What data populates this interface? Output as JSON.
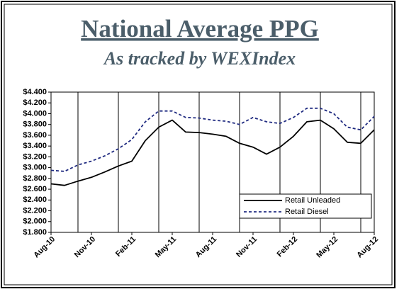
{
  "chart_data": {
    "type": "line",
    "title": "National Average PPG",
    "subtitle": "As tracked by WEXIndex",
    "categories": [
      "Aug-10",
      null,
      null,
      "Nov-10",
      null,
      null,
      "Feb-11",
      null,
      null,
      "May-11",
      null,
      null,
      "Aug-11",
      null,
      null,
      "Nov-11",
      null,
      null,
      "Feb-12",
      null,
      null,
      "May-12",
      null,
      null,
      "Aug-12"
    ],
    "series": [
      {
        "name": "Retail Unleaded",
        "color": "#000000",
        "dash": "solid",
        "values": [
          2.7,
          2.67,
          2.75,
          2.82,
          2.92,
          3.03,
          3.12,
          3.5,
          3.75,
          3.88,
          3.66,
          3.65,
          3.62,
          3.58,
          3.45,
          3.38,
          3.25,
          3.38,
          3.58,
          3.85,
          3.88,
          3.72,
          3.47,
          3.45,
          3.7
        ]
      },
      {
        "name": "Retail Diesel",
        "color": "#1f2a80",
        "dash": "dashed",
        "values": [
          2.95,
          2.93,
          3.05,
          3.12,
          3.22,
          3.35,
          3.52,
          3.85,
          4.05,
          4.05,
          3.93,
          3.92,
          3.88,
          3.86,
          3.8,
          3.93,
          3.85,
          3.82,
          3.93,
          4.1,
          4.1,
          4.0,
          3.75,
          3.7,
          3.95
        ]
      }
    ],
    "ylim": [
      1.8,
      4.4
    ],
    "yticks": [
      {
        "value": 1.8,
        "label": "$1.800"
      },
      {
        "value": 2.0,
        "label": "$2.000"
      },
      {
        "value": 2.2,
        "label": "$2.200"
      },
      {
        "value": 2.4,
        "label": "$2.400"
      },
      {
        "value": 2.6,
        "label": "$2.600"
      },
      {
        "value": 2.8,
        "label": "$2.800"
      },
      {
        "value": 3.0,
        "label": "$3.000"
      },
      {
        "value": 3.2,
        "label": "$3.200"
      },
      {
        "value": 3.4,
        "label": "$3.400"
      },
      {
        "value": 3.6,
        "label": "$3.600"
      },
      {
        "value": 3.8,
        "label": "$3.800"
      },
      {
        "value": 4.0,
        "label": "$4.000"
      },
      {
        "value": 4.2,
        "label": "$4.200"
      },
      {
        "value": 4.4,
        "label": "$4.400"
      }
    ],
    "legend": "lower right"
  }
}
